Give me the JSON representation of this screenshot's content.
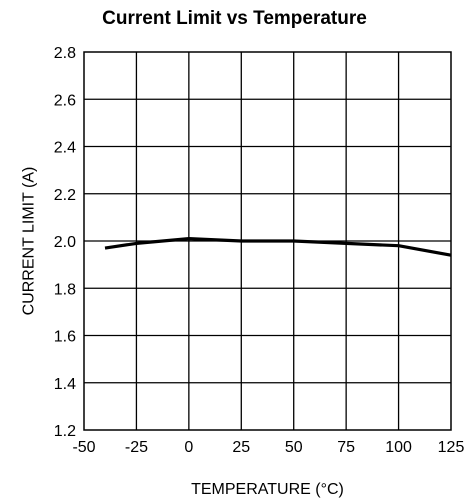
{
  "chart_data": {
    "type": "line",
    "title": "Current Limit vs Temperature",
    "xlabel": "TEMPERATURE (°C)",
    "ylabel": "CURRENT LIMIT (A)",
    "xlim": [
      -50,
      125
    ],
    "ylim": [
      1.2,
      2.8
    ],
    "xticks": [
      -50,
      -25,
      0,
      25,
      50,
      75,
      100,
      125
    ],
    "yticks": [
      1.2,
      1.4,
      1.6,
      1.8,
      2.0,
      2.2,
      2.4,
      2.6,
      2.8
    ],
    "xtick_labels": [
      "-50",
      "-25",
      "0",
      "25",
      "50",
      "75",
      "100",
      "125"
    ],
    "ytick_labels": [
      "1.2",
      "1.4",
      "1.6",
      "1.8",
      "2.0",
      "2.2",
      "2.4",
      "2.6",
      "2.8"
    ],
    "grid": true,
    "series": [
      {
        "x": [
          -40,
          -25,
          0,
          25,
          50,
          75,
          100,
          125
        ],
        "values": [
          1.97,
          1.99,
          2.01,
          2.0,
          2.0,
          1.99,
          1.98,
          1.94
        ]
      }
    ]
  }
}
